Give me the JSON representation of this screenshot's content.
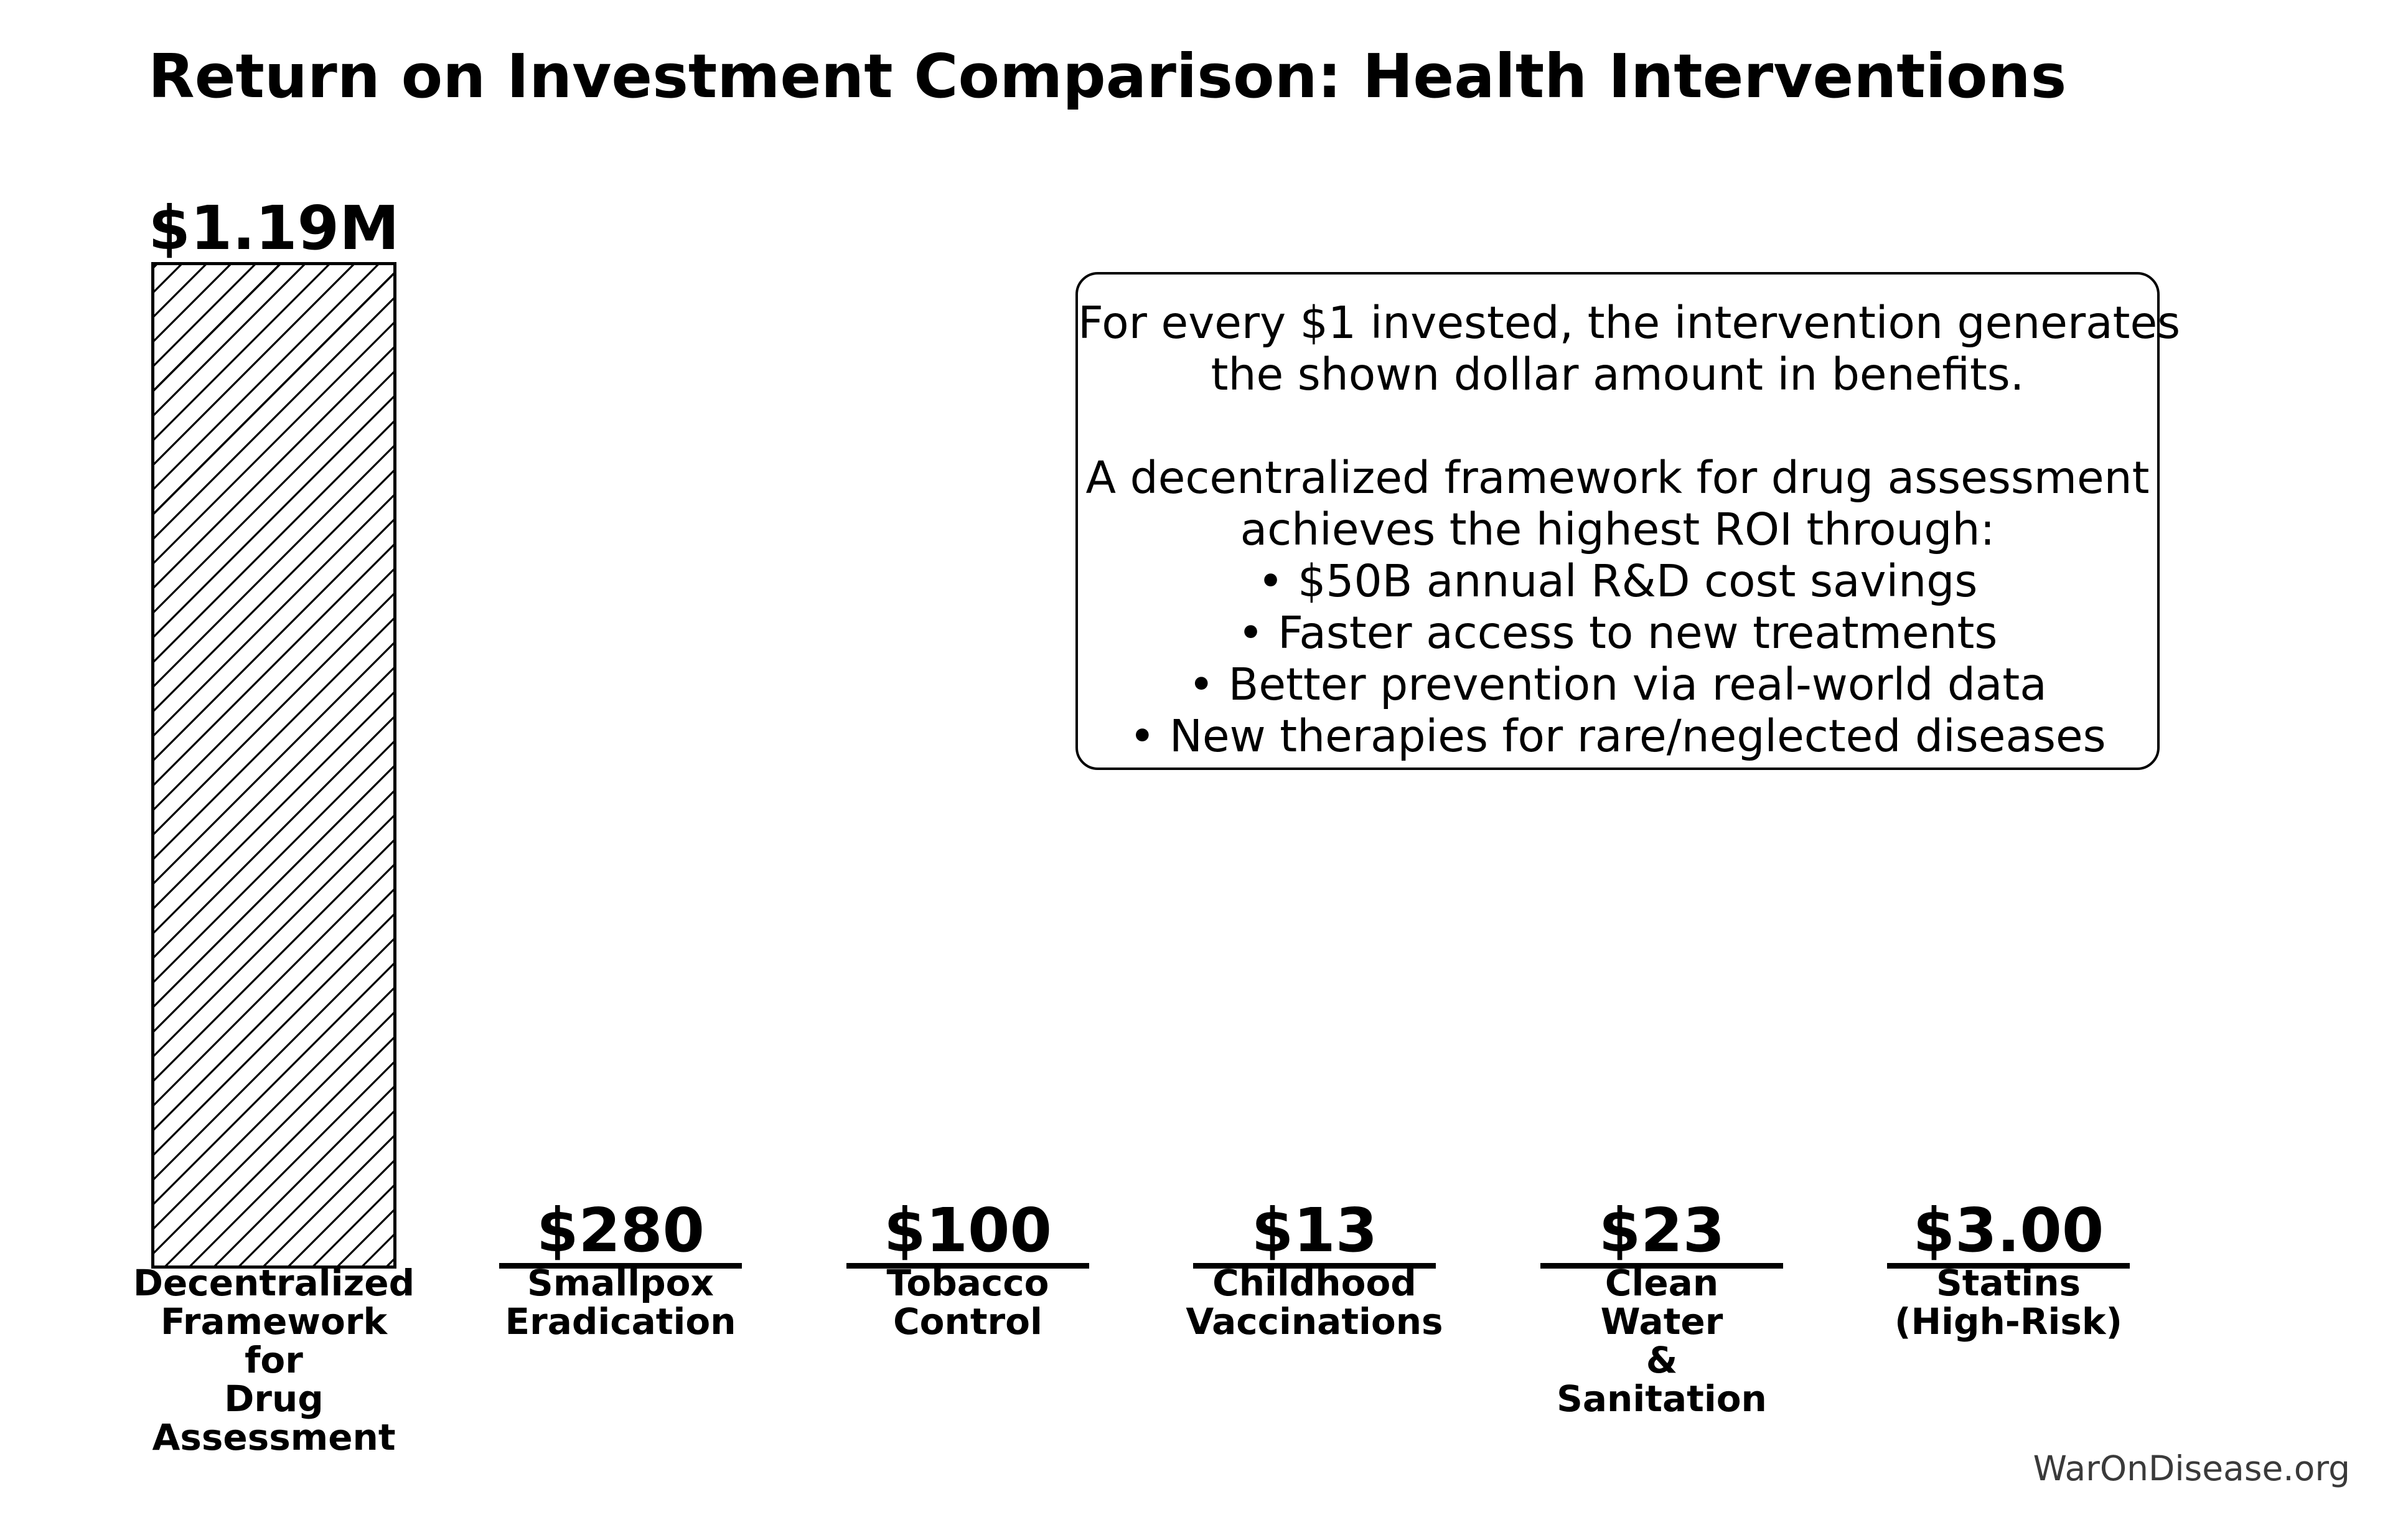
{
  "title": "Return on Investment Comparison: Health Interventions",
  "watermark": "WarOnDisease.org",
  "note": {
    "lines": [
      "For every $1 invested, the intervention generates",
      "the shown dollar amount in benefits.",
      "",
      "A decentralized framework for drug assessment",
      "achieves the highest ROI through:",
      "• $50B annual R&D cost savings",
      "• Faster access to new treatments",
      "• Better prevention via real-world data",
      "• New therapies for rare/neglected diseases"
    ]
  },
  "bars": [
    {
      "value_label": "$1.19M",
      "label": "Decentralized\nFramework\nfor\nDrug\nAssessment"
    },
    {
      "value_label": "$280",
      "label": "Smallpox\nEradication"
    },
    {
      "value_label": "$100",
      "label": "Tobacco\nControl"
    },
    {
      "value_label": "$13",
      "label": "Childhood\nVaccinations"
    },
    {
      "value_label": "$23",
      "label": "Clean\nWater\n&\nSanitation"
    },
    {
      "value_label": "$3.00",
      "label": "Statins\n(High-Risk)"
    }
  ],
  "chart_data": {
    "type": "bar",
    "title": "Return on Investment Comparison: Health Interventions",
    "categories": [
      "Decentralized Framework for Drug Assessment",
      "Smallpox Eradication",
      "Tobacco Control",
      "Childhood Vaccinations",
      "Clean Water & Sanitation",
      "Statins (High-Risk)"
    ],
    "values": [
      1190000,
      280,
      100,
      13,
      23,
      3.0
    ],
    "value_labels": [
      "$1.19M",
      "$280",
      "$100",
      "$13",
      "$23",
      "$3.00"
    ],
    "xlabel": "",
    "ylabel": "",
    "unit": "dollars of benefit per $1 invested",
    "ylim": [
      0,
      1250000
    ],
    "grid": false,
    "legend": false,
    "bar_style": {
      "fill": "white",
      "hatch": "/",
      "edgecolor": "#000000"
    },
    "annotation": "For every $1 invested, the intervention generates the shown dollar amount in benefits. A decentralized framework for drug assessment achieves the highest ROI through: • $50B annual R&D cost savings • Faster access to new treatments • Better prevention via real-world data • New therapies for rare/neglected diseases",
    "source_text": "WarOnDisease.org"
  },
  "colors": {
    "text": "#000000",
    "watermark": "#3a3a3a",
    "background": "#ffffff"
  }
}
